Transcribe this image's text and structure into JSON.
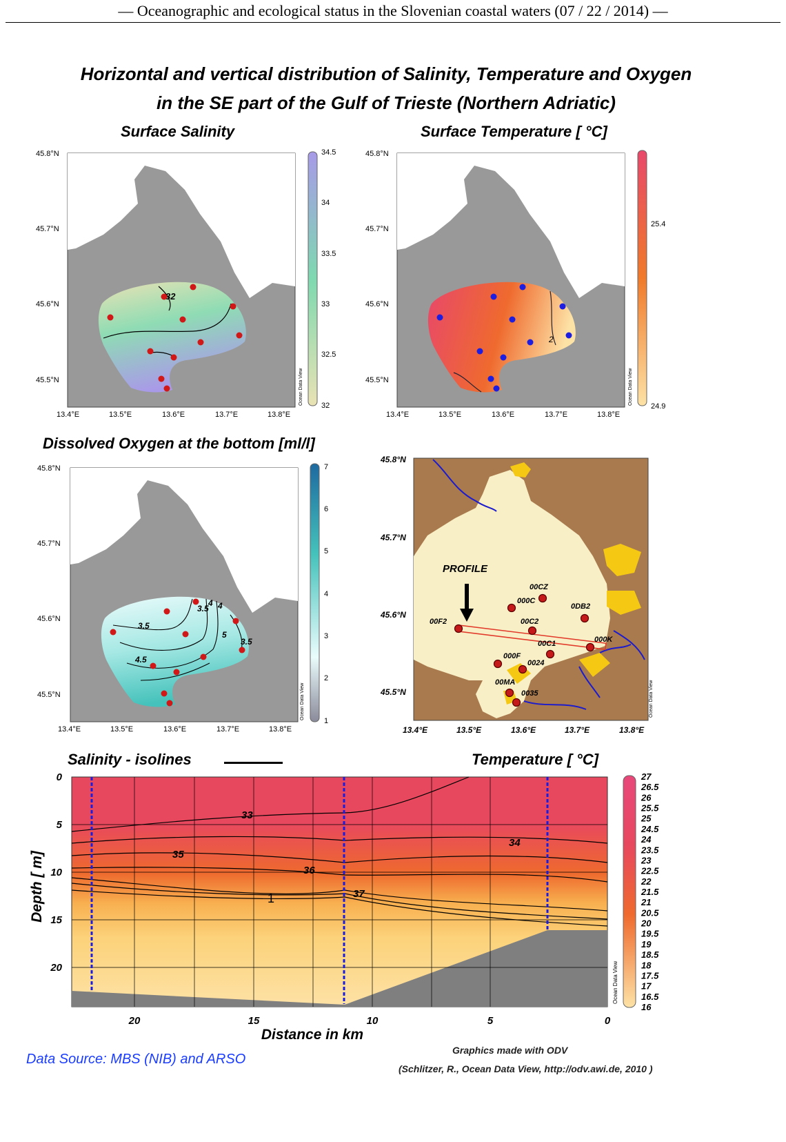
{
  "header": {
    "text": "— Oceanographic and ecological status in the Slovenian coastal waters (07 / 22 / 2014) —"
  },
  "title": {
    "line1": "Horizontal and vertical distribution of Salinity, Temperature and Oxygen",
    "line2": "in the SE part of the Gulf of Trieste (Northern Adriatic)"
  },
  "maps": {
    "lat_labels": [
      "45.8°N",
      "45.7°N",
      "45.6°N",
      "45.5°N"
    ],
    "lon_labels": [
      "13.4°E",
      "13.5°E",
      "13.6°E",
      "13.7°E",
      "13.8°E"
    ],
    "odv_mark": "Ocean Data View",
    "salinity": {
      "title": "Surface Salinity",
      "colorbar": [
        "34.5",
        "34",
        "33.5",
        "33",
        "32.5",
        "32"
      ],
      "isoline_label": "32",
      "colors": {
        "low": "#e9e2b4",
        "mid": "#7ed9b0",
        "high": "#a79ae8"
      }
    },
    "temperature": {
      "title": "Surface Temperature [ °C]",
      "colorbar": [
        "25.4",
        "24.9"
      ],
      "isoline_label": "2",
      "colors": {
        "low": "#fde2a6",
        "mid": "#f07a2a",
        "high": "#e8486a"
      }
    },
    "oxygen": {
      "title": "Dissolved Oxygen at the bottom [ml/l]",
      "colorbar": [
        "7",
        "6",
        "5",
        "4",
        "3",
        "2",
        "1"
      ],
      "isoline_labels": [
        "3.5",
        "4",
        "4",
        "3.5",
        "5",
        "3.5",
        "4.5"
      ],
      "colors": {
        "low": "#e9fbfb",
        "high": "#45c2bb"
      }
    },
    "stations": {
      "lat_labels": [
        "45.8°N",
        "45.7°N",
        "45.6°N",
        "45.5°N"
      ],
      "lon_labels": [
        "13.4°E",
        "13.5°E",
        "13.6°E",
        "13.7°E",
        "13.8°E"
      ],
      "profile_label": "PROFILE",
      "names": [
        "00CZ",
        "000C",
        "0DB2",
        "00F2",
        "00C2",
        "000K",
        "00C1",
        "000F",
        "0024",
        "00MA",
        "0035"
      ],
      "colors": {
        "land": "#a97a4e",
        "sea": "#f8efc6",
        "river": "#1c1ccc",
        "urban": "#f5c814"
      }
    }
  },
  "section": {
    "salinity_legend": "Salinity - isolines",
    "temperature_title": "Temperature [ °C]",
    "ylabel": "Depth [ m]",
    "xlabel": "Distance in km",
    "yticks": [
      "0",
      "5",
      "10",
      "15",
      "20"
    ],
    "xticks": [
      "20",
      "15",
      "10",
      "5",
      "0"
    ],
    "isoline_labels": [
      "33",
      "35",
      "36",
      "37",
      "34",
      "1"
    ],
    "colorbar": [
      "27",
      "26.5",
      "26",
      "25.5",
      "25",
      "24.5",
      "24",
      "23.5",
      "23",
      "22.5",
      "22",
      "21.5",
      "21",
      "20.5",
      "20",
      "19.5",
      "19",
      "18.5",
      "18",
      "17.5",
      "17",
      "16.5",
      "16"
    ],
    "colors": {
      "warm": "#e8485e",
      "mid": "#ef6a2e",
      "cool": "#fcd27a",
      "bottom": "#7f7f7f"
    }
  },
  "footer": {
    "source": "Data Source: MBS (NIB) and ARSO",
    "credit1": "Graphics made with ODV",
    "credit2": "(Schlitzer, R., Ocean Data View, http://odv.awi.de, 2010 )"
  }
}
